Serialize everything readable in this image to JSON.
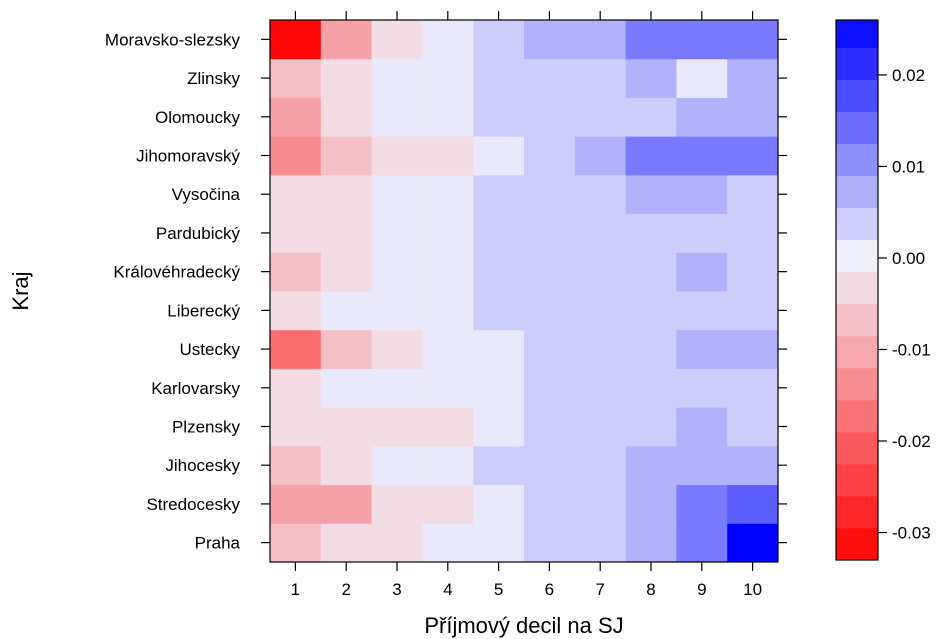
{
  "chart_data": {
    "type": "heatmap",
    "title": "",
    "xlabel": "Příjmový decil na SJ",
    "ylabel": "Kraj",
    "x": [
      "1",
      "2",
      "3",
      "4",
      "5",
      "6",
      "7",
      "8",
      "9",
      "10"
    ],
    "y": [
      "Praha",
      "Stredocesky",
      "Jihocesky",
      "Plzensky",
      "Karlovarsky",
      "Ustecky",
      "Liberecký",
      "Královéhradecký",
      "Pardubický",
      "Vysočina",
      "Jihomoravský",
      "Olomoucky",
      "Zlinsky",
      "Moravsko-slezsky"
    ],
    "values": [
      [
        -0.007,
        -0.003,
        -0.003,
        0.001,
        0.001,
        0.004,
        0.004,
        0.007,
        0.013,
        0.026
      ],
      [
        -0.011,
        -0.011,
        -0.003,
        -0.003,
        0.001,
        0.004,
        0.004,
        0.007,
        0.013,
        0.016
      ],
      [
        -0.007,
        -0.003,
        0.001,
        0.001,
        0.004,
        0.004,
        0.004,
        0.007,
        0.007,
        0.007
      ],
      [
        -0.003,
        -0.003,
        -0.003,
        -0.003,
        0.001,
        0.004,
        0.004,
        0.004,
        0.007,
        0.004
      ],
      [
        -0.003,
        0.001,
        0.001,
        0.001,
        0.001,
        0.004,
        0.004,
        0.004,
        0.004,
        0.004
      ],
      [
        -0.018,
        -0.007,
        -0.003,
        0.001,
        0.001,
        0.004,
        0.004,
        0.004,
        0.007,
        0.007
      ],
      [
        -0.003,
        0.001,
        0.001,
        0.001,
        0.004,
        0.004,
        0.004,
        0.004,
        0.004,
        0.004
      ],
      [
        -0.007,
        -0.003,
        0.001,
        0.001,
        0.004,
        0.004,
        0.004,
        0.004,
        0.007,
        0.004
      ],
      [
        -0.003,
        -0.003,
        0.001,
        0.001,
        0.004,
        0.004,
        0.004,
        0.004,
        0.004,
        0.004
      ],
      [
        -0.003,
        -0.003,
        0.001,
        0.001,
        0.004,
        0.004,
        0.004,
        0.007,
        0.007,
        0.004
      ],
      [
        -0.014,
        -0.007,
        -0.003,
        -0.003,
        0.001,
        0.004,
        0.007,
        0.013,
        0.013,
        0.013
      ],
      [
        -0.011,
        -0.003,
        0.001,
        0.001,
        0.004,
        0.004,
        0.004,
        0.004,
        0.007,
        0.007
      ],
      [
        -0.007,
        -0.003,
        0.001,
        0.001,
        0.004,
        0.004,
        0.004,
        0.007,
        0.001,
        0.007
      ],
      [
        -0.032,
        -0.011,
        -0.003,
        0.001,
        0.004,
        0.007,
        0.007,
        0.013,
        0.013,
        0.013
      ]
    ],
    "colorbar": {
      "min": -0.033,
      "max": 0.026,
      "step": 0.0035,
      "ticks": [
        -0.03,
        -0.02,
        -0.01,
        0.0,
        0.01,
        0.02
      ],
      "tick_labels": [
        "-0.03",
        "-0.02",
        "-0.01",
        "0.00",
        "0.01",
        "0.02"
      ]
    },
    "colors": {
      "negative_max": "#ff0000",
      "neutral": "#f2f2fb",
      "positive_max": "#0000ff"
    },
    "grid": false,
    "legend": "right"
  }
}
